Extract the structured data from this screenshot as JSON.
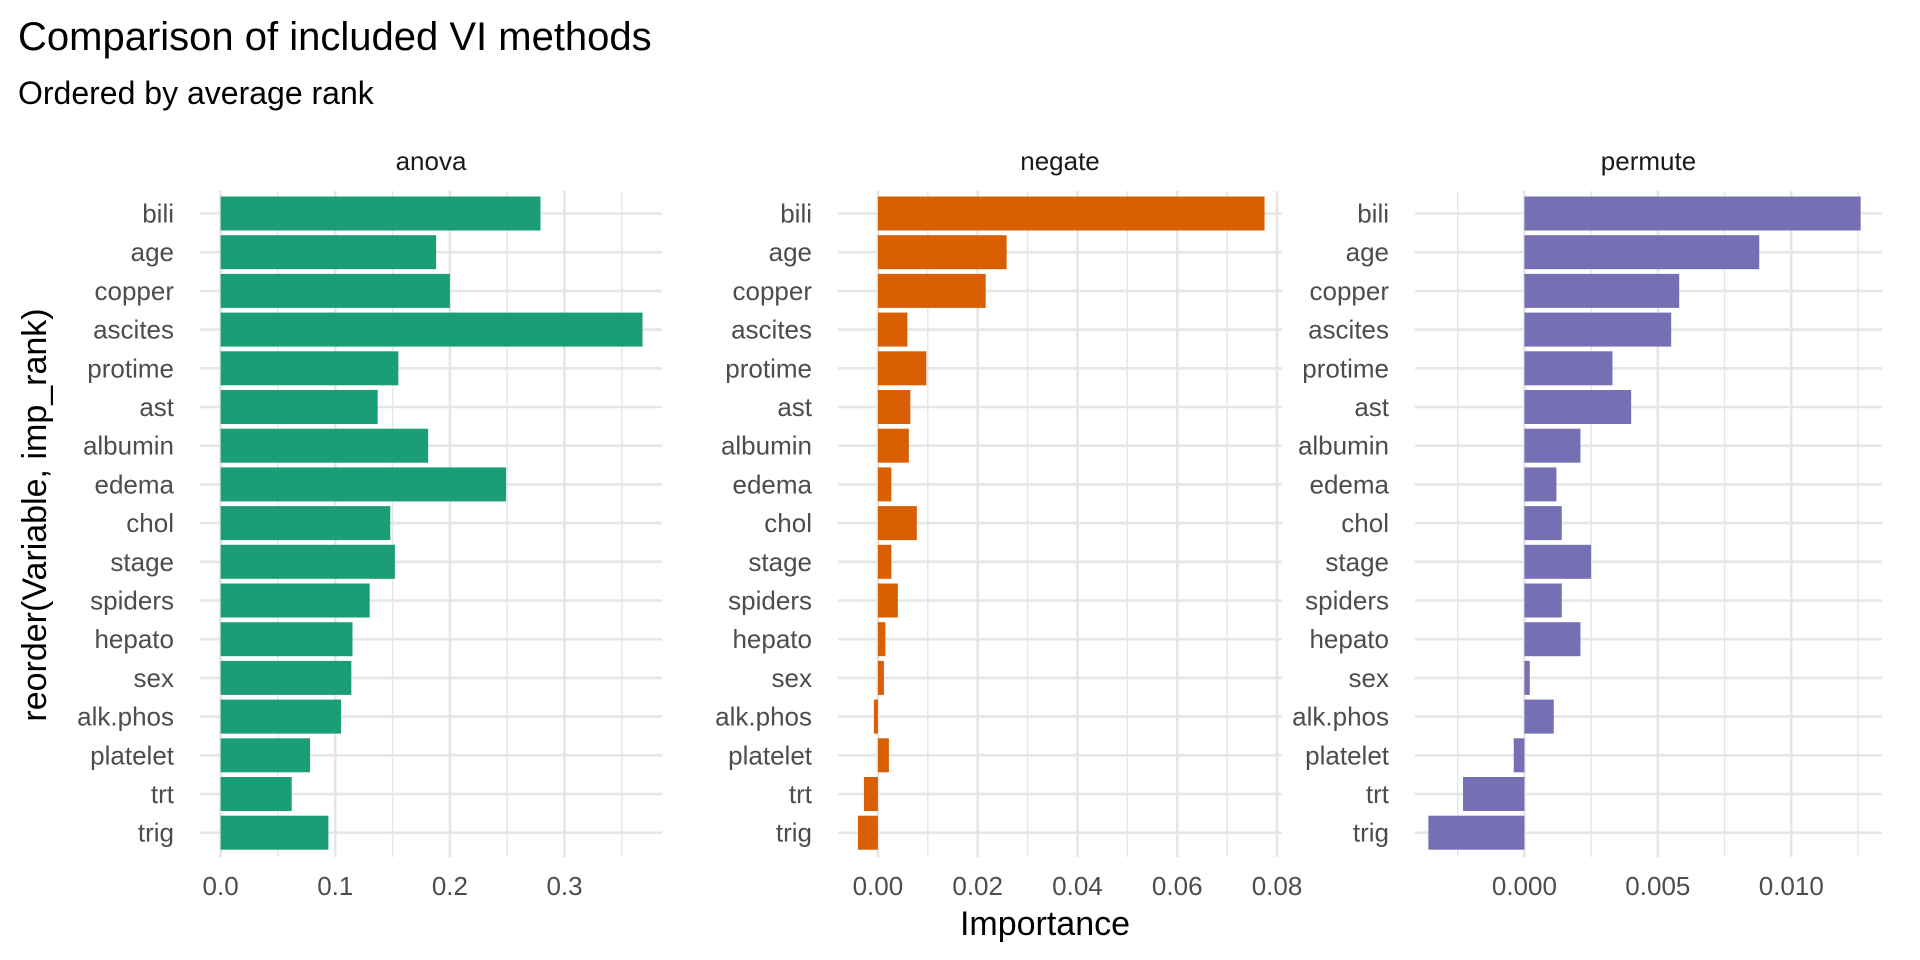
{
  "chart_data": {
    "type": "bar",
    "orientation": "horizontal",
    "title": "Comparison of included VI methods",
    "subtitle": "Ordered by average rank",
    "xlabel": "Importance",
    "ylabel": "reorder(Variable, imp_rank)",
    "grid": true,
    "legend": "none",
    "categories": [
      "bili",
      "age",
      "copper",
      "ascites",
      "protime",
      "ast",
      "albumin",
      "edema",
      "chol",
      "stage",
      "spiders",
      "hepato",
      "sex",
      "alk.phos",
      "platelet",
      "trt",
      "trig"
    ],
    "panels": [
      {
        "name": "anova",
        "color": "#1b9e77",
        "xlim": [
          -0.018,
          0.385
        ],
        "xticks": [
          0.0,
          0.1,
          0.2,
          0.3
        ],
        "xtick_labels": [
          "0.0",
          "0.1",
          "0.2",
          "0.3"
        ],
        "values": [
          0.279,
          0.188,
          0.2,
          0.368,
          0.155,
          0.137,
          0.181,
          0.249,
          0.148,
          0.152,
          0.13,
          0.115,
          0.114,
          0.105,
          0.078,
          0.062,
          0.094
        ]
      },
      {
        "name": "negate",
        "color": "#d95f02",
        "xlim": [
          -0.008,
          0.081
        ],
        "xticks": [
          0.0,
          0.02,
          0.04,
          0.06,
          0.08
        ],
        "xtick_labels": [
          "0.00",
          "0.02",
          "0.04",
          "0.06",
          "0.08"
        ],
        "values": [
          0.0775,
          0.0258,
          0.0216,
          0.0059,
          0.0097,
          0.0065,
          0.0062,
          0.0027,
          0.0078,
          0.0027,
          0.004,
          0.0015,
          0.0012,
          -0.0008,
          0.0022,
          -0.0028,
          -0.004
        ]
      },
      {
        "name": "permute",
        "color": "#7570b3",
        "xlim": [
          -0.0041,
          0.0134
        ],
        "xticks": [
          0.0,
          0.005,
          0.01
        ],
        "xtick_labels": [
          "0.000",
          "0.005",
          "0.010"
        ],
        "values": [
          0.0126,
          0.0088,
          0.0058,
          0.0055,
          0.0033,
          0.004,
          0.0021,
          0.0012,
          0.0014,
          0.0025,
          0.0014,
          0.0021,
          0.0002,
          0.0011,
          -0.0004,
          -0.0023,
          -0.0036
        ]
      }
    ]
  }
}
